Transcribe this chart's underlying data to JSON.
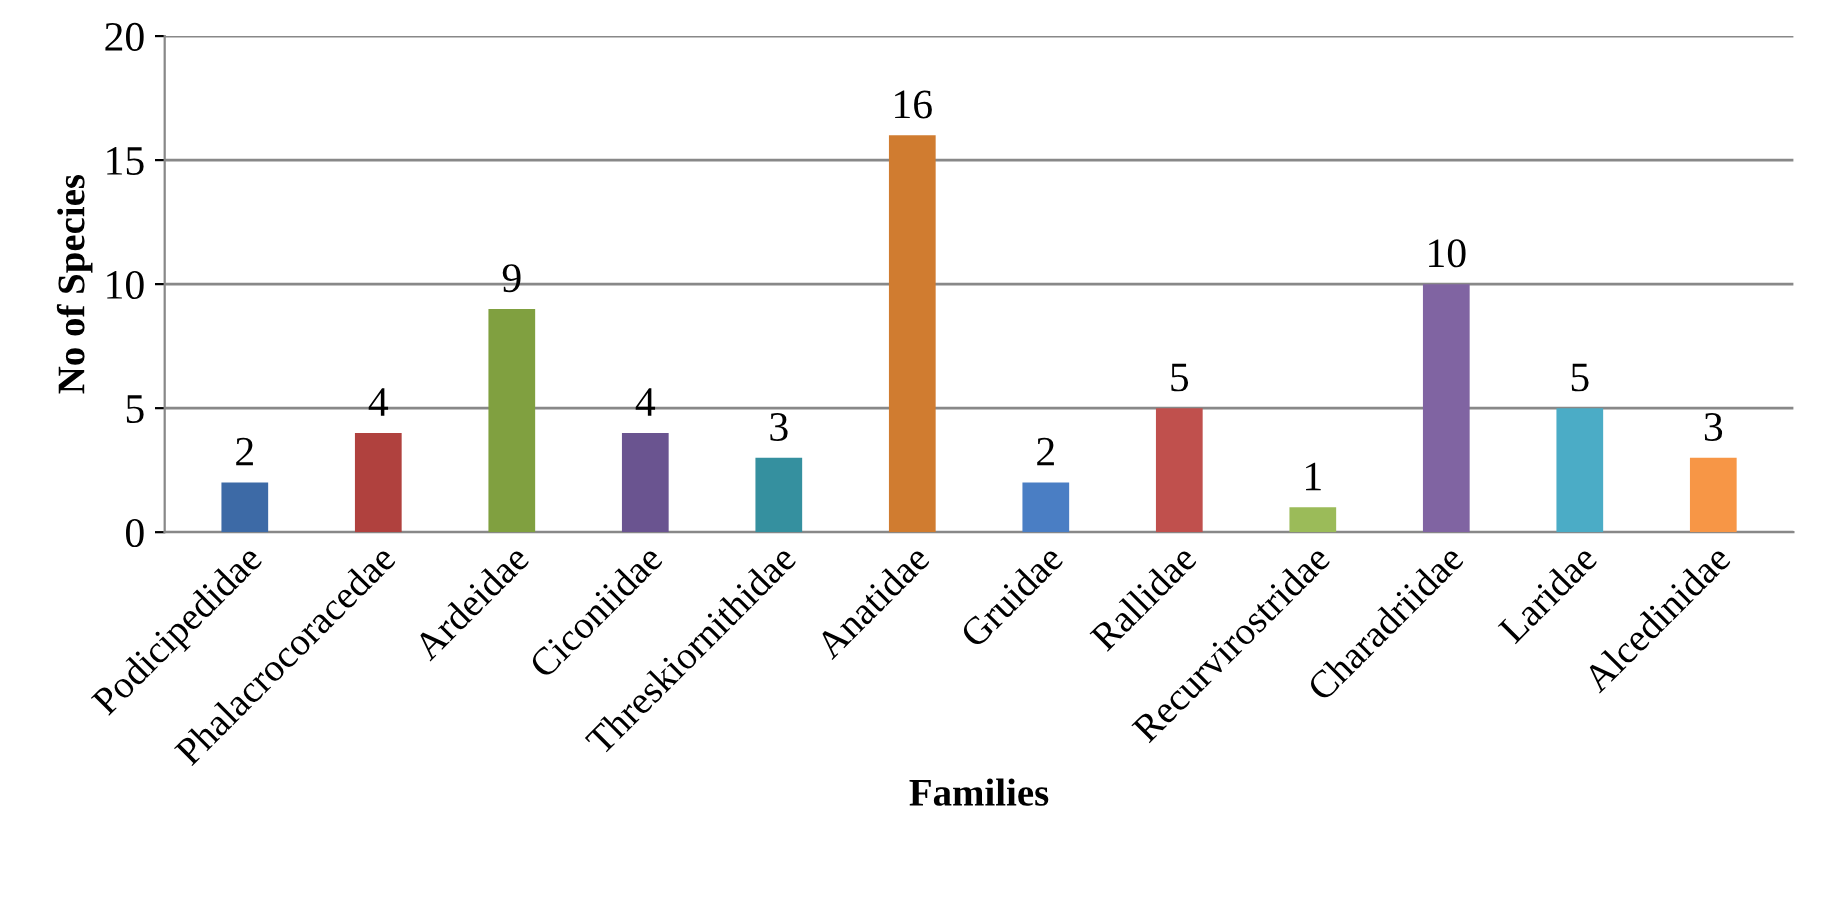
{
  "chart_data": {
    "type": "bar",
    "xlabel": "Families",
    "ylabel": "No of Species",
    "categories": [
      "Podicipedidae",
      "Phalacrocoracedae",
      "Ardeidae",
      "Ciconiidae",
      "Threskiornithidae",
      "Anatidae",
      "Gruidae",
      "Rallidae",
      "Recurvirostridae",
      "Charadriidae",
      "Laridae",
      "Alcedinidae"
    ],
    "values": [
      2,
      4,
      9,
      4,
      3,
      16,
      2,
      5,
      1,
      10,
      5,
      3
    ],
    "colors": [
      "#3d6aa6",
      "#b0413e",
      "#80a040",
      "#6a5490",
      "#35909f",
      "#d07c30",
      "#4a7ec4",
      "#c0504d",
      "#9bbb59",
      "#8064a2",
      "#4bacc6",
      "#f79646"
    ],
    "ylim": [
      0,
      20
    ],
    "yticks": [
      0,
      5,
      10,
      15,
      20
    ],
    "grid": "y",
    "data_labels": true
  }
}
